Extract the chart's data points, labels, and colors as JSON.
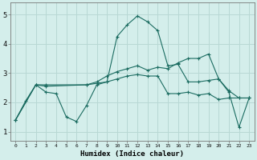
{
  "xlabel": "Humidex (Indice chaleur)",
  "background_color": "#d4eeeb",
  "grid_color": "#b8d8d4",
  "line_color": "#1a6b60",
  "ylim": [
    0.7,
    5.4
  ],
  "xlim": [
    -0.5,
    23.5
  ],
  "x_ticks": [
    0,
    1,
    2,
    3,
    4,
    5,
    6,
    7,
    8,
    9,
    10,
    11,
    12,
    13,
    14,
    15,
    16,
    17,
    18,
    19,
    20,
    21,
    22,
    23
  ],
  "y_ticks": [
    1,
    2,
    3,
    4,
    5
  ],
  "line1_x": [
    0,
    1,
    2,
    3,
    4,
    5,
    6,
    7,
    8,
    9,
    10,
    11,
    12,
    13,
    14,
    15,
    16,
    17,
    18,
    19,
    20,
    21,
    22,
    23
  ],
  "line1_y": [
    1.4,
    2.05,
    2.6,
    2.35,
    2.3,
    1.5,
    1.35,
    1.9,
    2.6,
    2.7,
    4.25,
    4.65,
    4.95,
    4.75,
    4.45,
    3.25,
    3.3,
    2.7,
    2.7,
    2.75,
    2.8,
    2.35,
    1.15,
    2.15
  ],
  "line2_x": [
    0,
    2,
    3,
    7,
    8,
    9,
    10,
    11,
    12,
    13,
    14,
    15,
    16,
    17,
    18,
    19,
    20,
    21,
    22,
    23
  ],
  "line2_y": [
    1.4,
    2.6,
    2.6,
    2.6,
    2.7,
    2.9,
    3.05,
    3.15,
    3.25,
    3.1,
    3.2,
    3.15,
    3.35,
    3.5,
    3.5,
    3.65,
    2.8,
    2.4,
    2.15,
    2.15
  ],
  "line3_x": [
    0,
    2,
    3,
    7,
    8,
    9,
    10,
    11,
    12,
    13,
    14,
    15,
    16,
    17,
    18,
    19,
    20,
    21,
    22,
    23
  ],
  "line3_y": [
    1.4,
    2.6,
    2.55,
    2.6,
    2.65,
    2.7,
    2.8,
    2.9,
    2.95,
    2.9,
    2.9,
    2.3,
    2.3,
    2.35,
    2.25,
    2.3,
    2.1,
    2.15,
    2.15,
    2.15
  ]
}
